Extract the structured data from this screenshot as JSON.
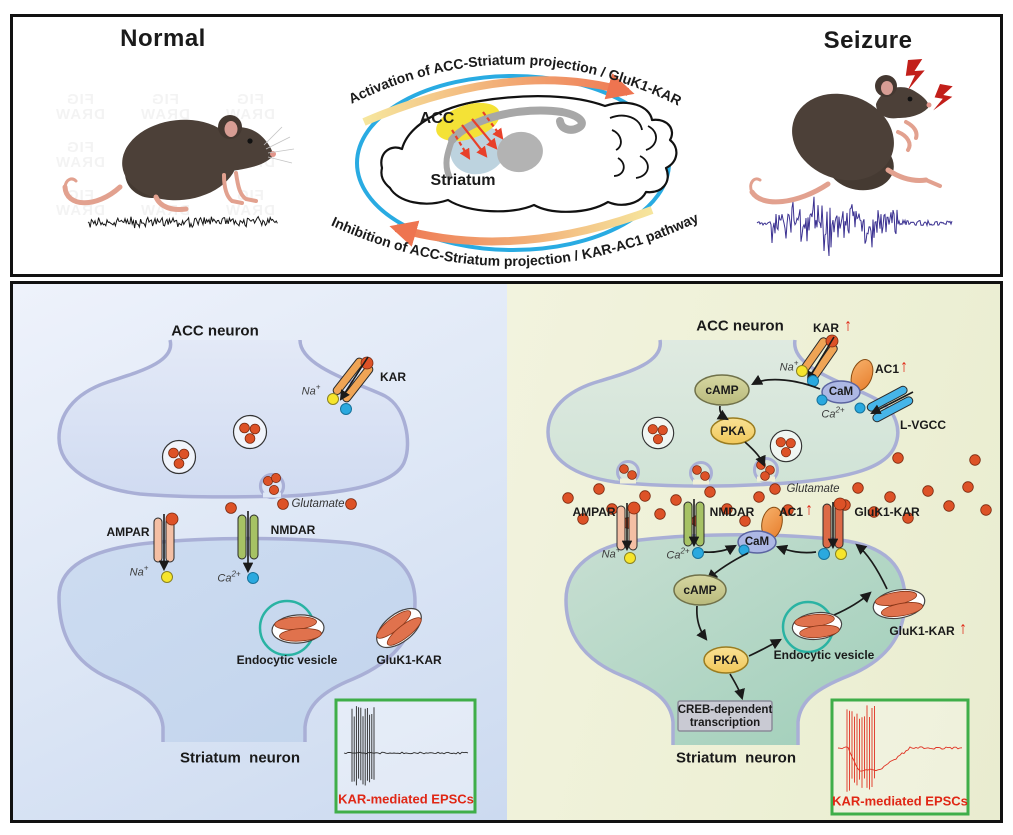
{
  "top_panel": {
    "normal_title": "Normal",
    "seizure_title": "Seizure",
    "activation_text": "Activation of ACC-Striatum projection / GluK1-KAR",
    "inhibition_text": "Inhibition of ACC-Striatum projection / KAR-AC1 pathway",
    "acc_label": "ACC",
    "striatum_label": "Striatum",
    "watermark": {
      "line1": "FIG",
      "line2": "DRAW"
    }
  },
  "ions": {
    "na": {
      "base": "Na",
      "sup": "+"
    },
    "ca": {
      "base": "Ca",
      "sup": "2+"
    }
  },
  "molecules": {
    "kar": "KAR",
    "ampar": "AMPAR",
    "nmdar": "NMDAR",
    "gluk1_kar": "GluK1-KAR",
    "ac1": "AC1",
    "cam": "CaM",
    "camp": "cAMP",
    "pka": "PKA",
    "lvgcc": "L-VGCC",
    "glutamate": "Glutamate"
  },
  "normal_panel": {
    "top_label": "ACC neuron",
    "bottom_label": "Striatum  neuron",
    "endocytic_vesicle": "Endocytic vesicle",
    "inset_label": "KAR-mediated EPSCs"
  },
  "seizure_panel": {
    "top_label": "ACC neuron",
    "bottom_label": "Striatum  neuron",
    "endocytic_vesicle": "Endocytic vesicle",
    "creb_line1": "CREB-dependent",
    "creb_line2": "transcription",
    "inset_label": "KAR-mediated EPSCs",
    "up_arrow": "↑"
  },
  "colors": {
    "accent_blue_ellipse": "#29abe2",
    "gradient_arrow_start": "#f6e79e",
    "gradient_arrow_end": "#ee7450",
    "membrane": "#a9afd6",
    "glutamate_dot": "#dd5227",
    "na_dot": "#f6e52c",
    "ca_dot": "#2aa9df",
    "kar_channel": "#efa455",
    "ampar_channel": "#f4bfa4",
    "nmdar_channel": "#a6c264",
    "gluk1_channel": "#dc6a47",
    "lvgcc_channel": "#46b5e9",
    "ac1_oval": "#f09a48",
    "cam_oval": "#adb8e4",
    "camp_oval": "#c9ca90",
    "pka_oval": "#f5d878",
    "creb_box": "#c9cad3",
    "endo_circle": "#2ab3a3",
    "inset_border": "#3fae49",
    "epsc_trace_normal": "#2a2a2a",
    "epsc_trace_seizure": "#e03222",
    "eeg_normal": "#151515",
    "eeg_seizure": "#3b3191",
    "red_up_arrow": "#e02715",
    "acc_region": "#f4e236",
    "striatum_region": "#bdd3df"
  }
}
